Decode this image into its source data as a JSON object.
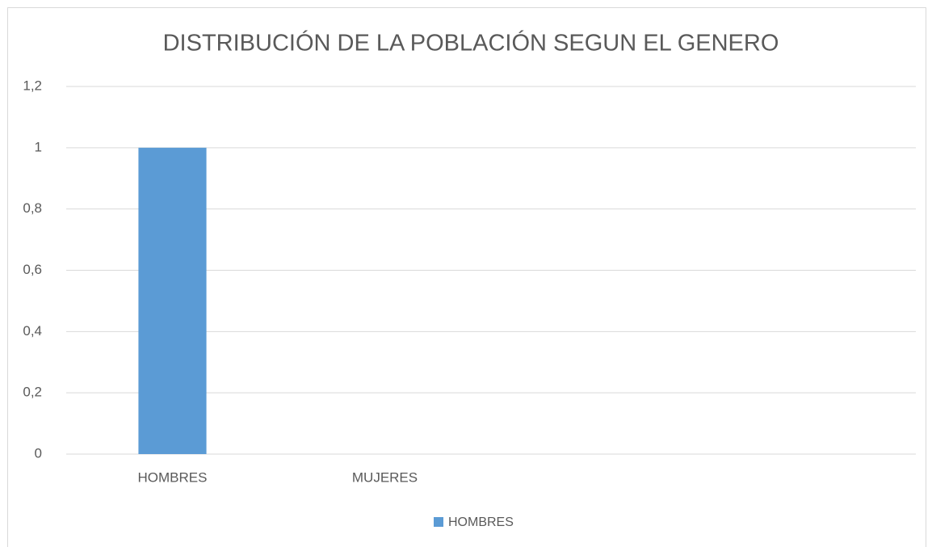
{
  "chart_data": {
    "type": "bar",
    "title": "DISTRIBUCIÓN DE LA POBLACIÓN SEGUN EL GENERO",
    "categories": [
      "HOMBRES",
      "MUJERES",
      null,
      null
    ],
    "series": [
      {
        "name": "HOMBRES",
        "color": "#5b9bd5",
        "values": [
          1,
          null,
          null,
          null
        ]
      }
    ],
    "ylim": [
      0,
      1.2
    ],
    "yticks": [
      0,
      {
        "value": 0.2,
        "label": "0,2"
      },
      {
        "value": 0.4,
        "label": "0,4"
      },
      {
        "value": 0.6,
        "label": "0,6"
      },
      {
        "value": 0.8,
        "label": "0,8"
      },
      1,
      {
        "value": 1.2,
        "label": "1,2"
      }
    ],
    "grid": true,
    "legend": "bottom"
  }
}
